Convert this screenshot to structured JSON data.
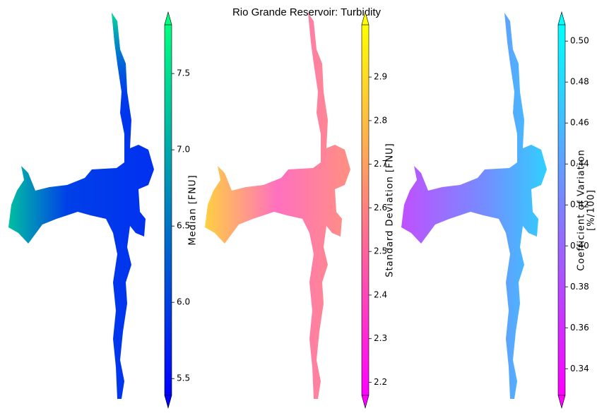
{
  "title": "Rio Grande Reservoir: Turbidity",
  "panels": [
    {
      "colorbar_label": [
        "Median [FNU]"
      ],
      "colors": [
        "#0000ff",
        "#00ff80"
      ],
      "lim": [
        5.39,
        7.82
      ],
      "ticks": [
        5.5,
        {
          "value": 6,
          "label": "6.0"
        },
        6.5,
        {
          "value": 7,
          "label": "7.0"
        },
        7.5
      ]
    },
    {
      "colorbar_label": [
        "Standard Deviation [FNU]"
      ],
      "colors": [
        "#ff00ff",
        "#ffff00"
      ],
      "lim": [
        2.17,
        3.02
      ],
      "ticks": [
        2.2,
        2.3,
        2.4,
        2.5,
        2.6,
        2.7,
        2.8,
        2.9
      ]
    },
    {
      "colorbar_label": [
        "Coefficient of Variation",
        "[%/100]"
      ],
      "colors": [
        "#ff00ff",
        "#00ffff"
      ],
      "lim": [
        0.327,
        0.508
      ],
      "ticks": [
        0.34,
        0.36,
        0.38,
        {
          "value": 0.4,
          "label": "0.40"
        },
        0.42,
        0.44,
        0.46,
        0.48,
        {
          "value": 0.5,
          "label": "0.50"
        }
      ]
    }
  ]
}
